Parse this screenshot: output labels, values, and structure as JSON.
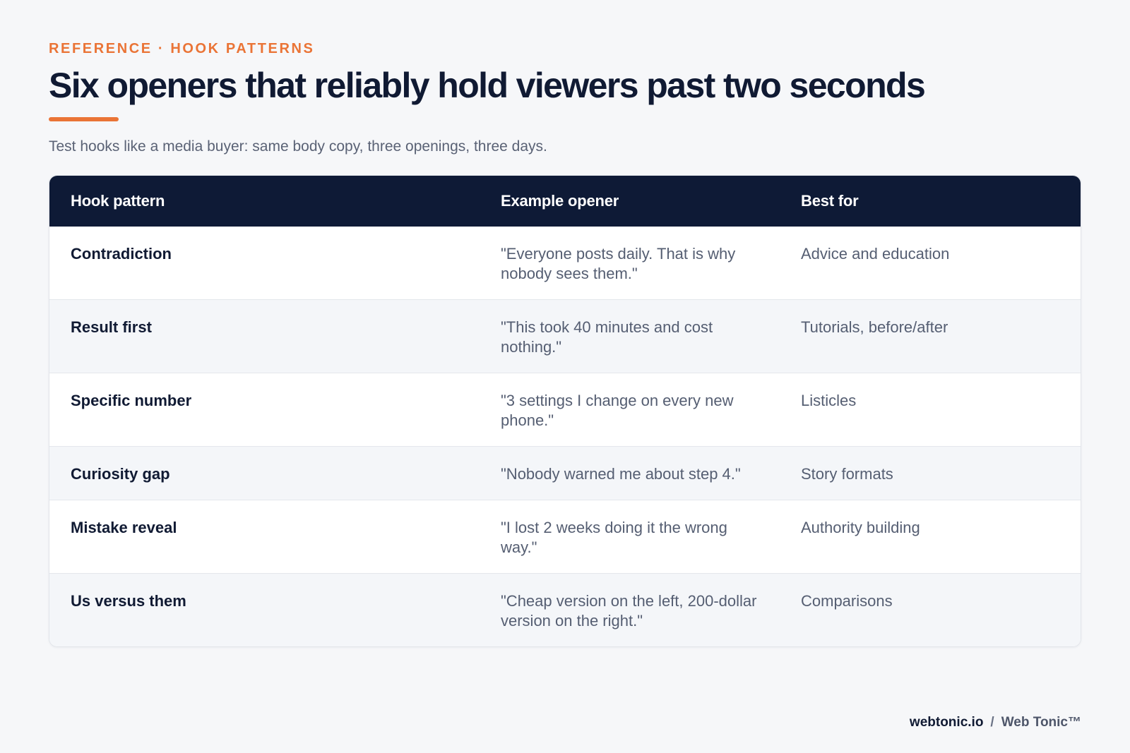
{
  "header": {
    "eyebrow": "REFERENCE · HOOK PATTERNS",
    "title": "Six openers that reliably hold viewers past two seconds",
    "subtitle": "Test hooks like a media buyer: same body copy, three openings, three days."
  },
  "table": {
    "columns": [
      "Hook pattern",
      "Example opener",
      "Best for"
    ],
    "rows": [
      {
        "pattern": "Contradiction",
        "example": "\"Everyone posts daily. That is why nobody sees them.\"",
        "best_for": "Advice and education"
      },
      {
        "pattern": "Result first",
        "example": "\"This took 40 minutes and cost nothing.\"",
        "best_for": "Tutorials, before/after"
      },
      {
        "pattern": "Specific number",
        "example": "\"3 settings I change on every new phone.\"",
        "best_for": "Listicles"
      },
      {
        "pattern": "Curiosity gap",
        "example": "\"Nobody warned me about step 4.\"",
        "best_for": "Story formats"
      },
      {
        "pattern": "Mistake reveal",
        "example": "\"I lost 2 weeks doing it the wrong way.\"",
        "best_for": "Authority building"
      },
      {
        "pattern": "Us versus them",
        "example": "\"Cheap version on the left, 200-dollar version on the right.\"",
        "best_for": "Comparisons"
      }
    ]
  },
  "footer": {
    "domain": "webtonic.io",
    "separator": "/",
    "brand": "Web Tonic™"
  },
  "colors": {
    "accent": "#ea7436",
    "header_bg": "#0e1a36",
    "title_text": "#101a33",
    "body_text": "#555e72",
    "page_bg": "#f6f7f9"
  }
}
